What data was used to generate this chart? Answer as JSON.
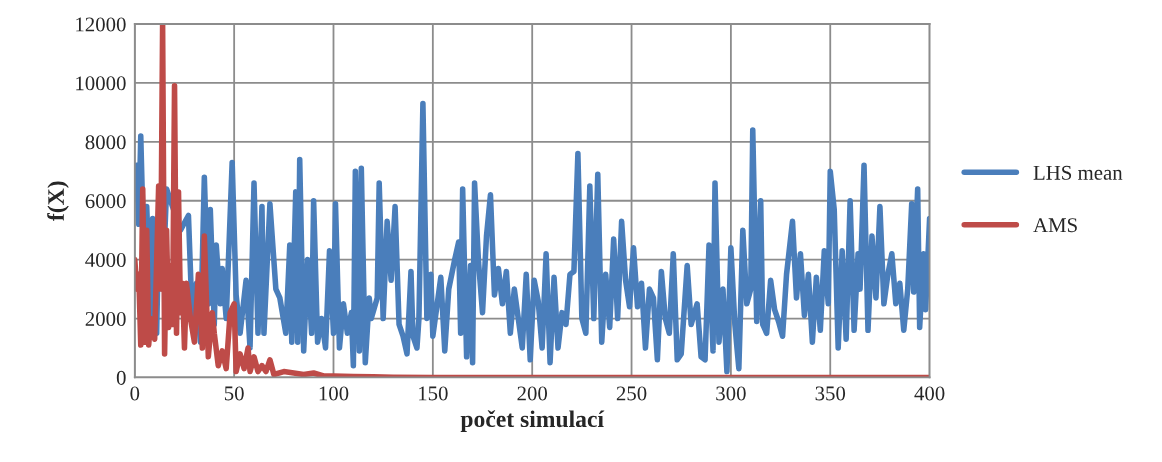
{
  "chart_data": {
    "type": "line",
    "xlabel": "počet simulací",
    "ylabel": "f(X)",
    "xlim": [
      0,
      400
    ],
    "xticks": [
      0,
      50,
      100,
      150,
      200,
      250,
      300,
      350,
      400
    ],
    "ylim": [
      0,
      12000
    ],
    "yticks": [
      0,
      2000,
      4000,
      6000,
      8000,
      10000,
      12000
    ],
    "grid": true,
    "legend": "right",
    "marker": "none",
    "line_style": "solid",
    "series": [
      {
        "name": "LHS mean",
        "color": "#4a7ebb",
        "x": [
          1,
          2,
          3,
          5,
          6,
          8,
          9,
          11,
          12,
          14,
          16,
          17,
          19,
          21,
          23,
          25,
          27,
          29,
          31,
          33,
          35,
          37,
          38,
          40,
          41,
          43,
          44,
          46,
          49,
          51,
          53,
          56,
          58,
          60,
          62,
          64,
          65,
          68,
          71,
          73,
          76,
          78,
          79,
          81,
          82,
          83,
          85,
          87,
          89,
          90,
          92,
          94,
          96,
          98,
          100,
          101,
          103,
          105,
          107,
          109,
          110,
          111,
          113,
          114,
          116,
          118,
          119,
          122,
          123,
          125,
          127,
          129,
          131,
          133,
          135,
          137,
          139,
          140,
          142,
          143,
          145,
          147,
          149,
          150,
          152,
          154,
          156,
          158,
          161,
          163,
          164,
          165,
          167,
          169,
          170,
          171,
          173,
          175,
          177,
          179,
          181,
          183,
          185,
          187,
          189,
          191,
          193,
          195,
          197,
          199,
          201,
          203,
          205,
          207,
          209,
          211,
          213,
          215,
          217,
          219,
          221,
          223,
          225,
          227,
          229,
          231,
          233,
          235,
          237,
          239,
          241,
          243,
          245,
          247,
          249,
          251,
          253,
          255,
          257,
          259,
          261,
          263,
          265,
          267,
          269,
          271,
          273,
          275,
          278,
          280,
          283,
          285,
          287,
          289,
          291,
          292,
          294,
          296,
          298,
          300,
          302,
          304,
          306,
          308,
          310,
          311,
          313,
          315,
          316,
          318,
          320,
          322,
          324,
          326,
          328,
          331,
          333,
          335,
          337,
          339,
          341,
          343,
          345,
          347,
          349,
          350,
          352,
          354,
          356,
          358,
          360,
          362,
          364,
          365,
          367,
          369,
          371,
          373,
          375,
          377,
          379,
          381,
          383,
          385,
          387,
          389,
          391,
          392,
          394,
          395,
          397,
          398,
          400
        ],
        "values": [
          7200,
          5200,
          8200,
          3000,
          5800,
          2000,
          5400,
          1500,
          5000,
          3000,
          6400,
          null,
          5800,
          null,
          5000,
          null,
          5500,
          1800,
          3200,
          1200,
          6800,
          2500,
          5700,
          1800,
          4500,
          2500,
          3700,
          2000,
          7300,
          2800,
          1500,
          3300,
          1000,
          6600,
          1500,
          5800,
          1500,
          5900,
          3000,
          2700,
          1500,
          4500,
          1200,
          6300,
          1200,
          7400,
          900,
          4000,
          1500,
          6000,
          1200,
          2000,
          1000,
          4300,
          1500,
          5900,
          1000,
          2500,
          1500,
          2200,
          400,
          7000,
          900,
          7100,
          500,
          2700,
          2000,
          2700,
          6600,
          2000,
          5300,
          3300,
          5800,
          1800,
          1400,
          800,
          3600,
          1400,
          1000,
          2000,
          9300,
          2000,
          3500,
          1400,
          2400,
          3400,
          900,
          3000,
          4000,
          4600,
          1500,
          6400,
          700,
          3800,
          500,
          6600,
          3900,
          2200,
          4800,
          6200,
          2800,
          3700,
          2500,
          3600,
          1500,
          3000,
          2000,
          1000,
          3500,
          600,
          3300,
          2600,
          1000,
          4200,
          500,
          3400,
          1000,
          2200,
          1800,
          3500,
          3600,
          7600,
          2000,
          1500,
          6500,
          2000,
          6900,
          1200,
          3500,
          1700,
          4700,
          2000,
          5300,
          3300,
          2400,
          4400,
          2400,
          3200,
          1000,
          3000,
          2700,
          600,
          3600,
          2000,
          1500,
          4200,
          600,
          800,
          3800,
          1800,
          2500,
          700,
          600,
          4500,
          900,
          6600,
          1200,
          3000,
          200,
          4400,
          1800,
          300,
          5000,
          2500,
          3000,
          8400,
          1900,
          6000,
          1800,
          1500,
          3300,
          2300,
          1900,
          1400,
          3500,
          5300,
          2700,
          4200,
          2100,
          3500,
          1200,
          3400,
          1600,
          4300,
          2500,
          7000,
          5700,
          1000,
          4300,
          1300,
          6000,
          1600,
          4200,
          3000,
          7200,
          1600,
          4800,
          2700,
          5800,
          2500,
          3500,
          4200,
          2500,
          3200,
          1600,
          3000,
          5900,
          2900,
          6400,
          1700,
          4200,
          2300,
          5400
        ]
      },
      {
        "name": "AMS",
        "color": "#be4b48",
        "x": [
          0,
          1,
          2,
          3,
          4,
          5,
          6,
          7,
          8,
          10,
          12,
          13,
          14,
          15,
          16,
          17,
          18,
          19,
          20,
          21,
          22,
          23,
          24,
          25,
          26,
          28,
          30,
          32,
          34,
          35,
          37,
          39,
          40,
          42,
          44,
          46,
          48,
          50,
          51,
          53,
          55,
          57,
          58,
          60,
          62,
          64,
          66,
          68,
          70,
          75,
          80,
          85,
          90,
          95,
          100,
          110,
          120,
          130,
          150,
          200,
          300,
          400
        ],
        "values": [
          4000,
          3000,
          3500,
          1100,
          6400,
          1200,
          5000,
          1100,
          2000,
          1300,
          6500,
          3000,
          12000,
          800,
          5000,
          1700,
          3800,
          1800,
          9900,
          1500,
          6300,
          2200,
          3200,
          1000,
          3200,
          2000,
          1200,
          3500,
          1000,
          4800,
          700,
          2200,
          1500,
          400,
          900,
          300,
          2200,
          2500,
          200,
          800,
          300,
          1000,
          200,
          700,
          200,
          400,
          200,
          600,
          100,
          200,
          150,
          100,
          150,
          50,
          50,
          30,
          20,
          10,
          0,
          0,
          0,
          0
        ]
      }
    ]
  }
}
